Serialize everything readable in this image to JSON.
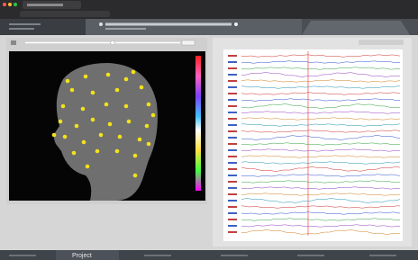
{
  "footer": {
    "tabs": [
      "Project"
    ]
  }
}
